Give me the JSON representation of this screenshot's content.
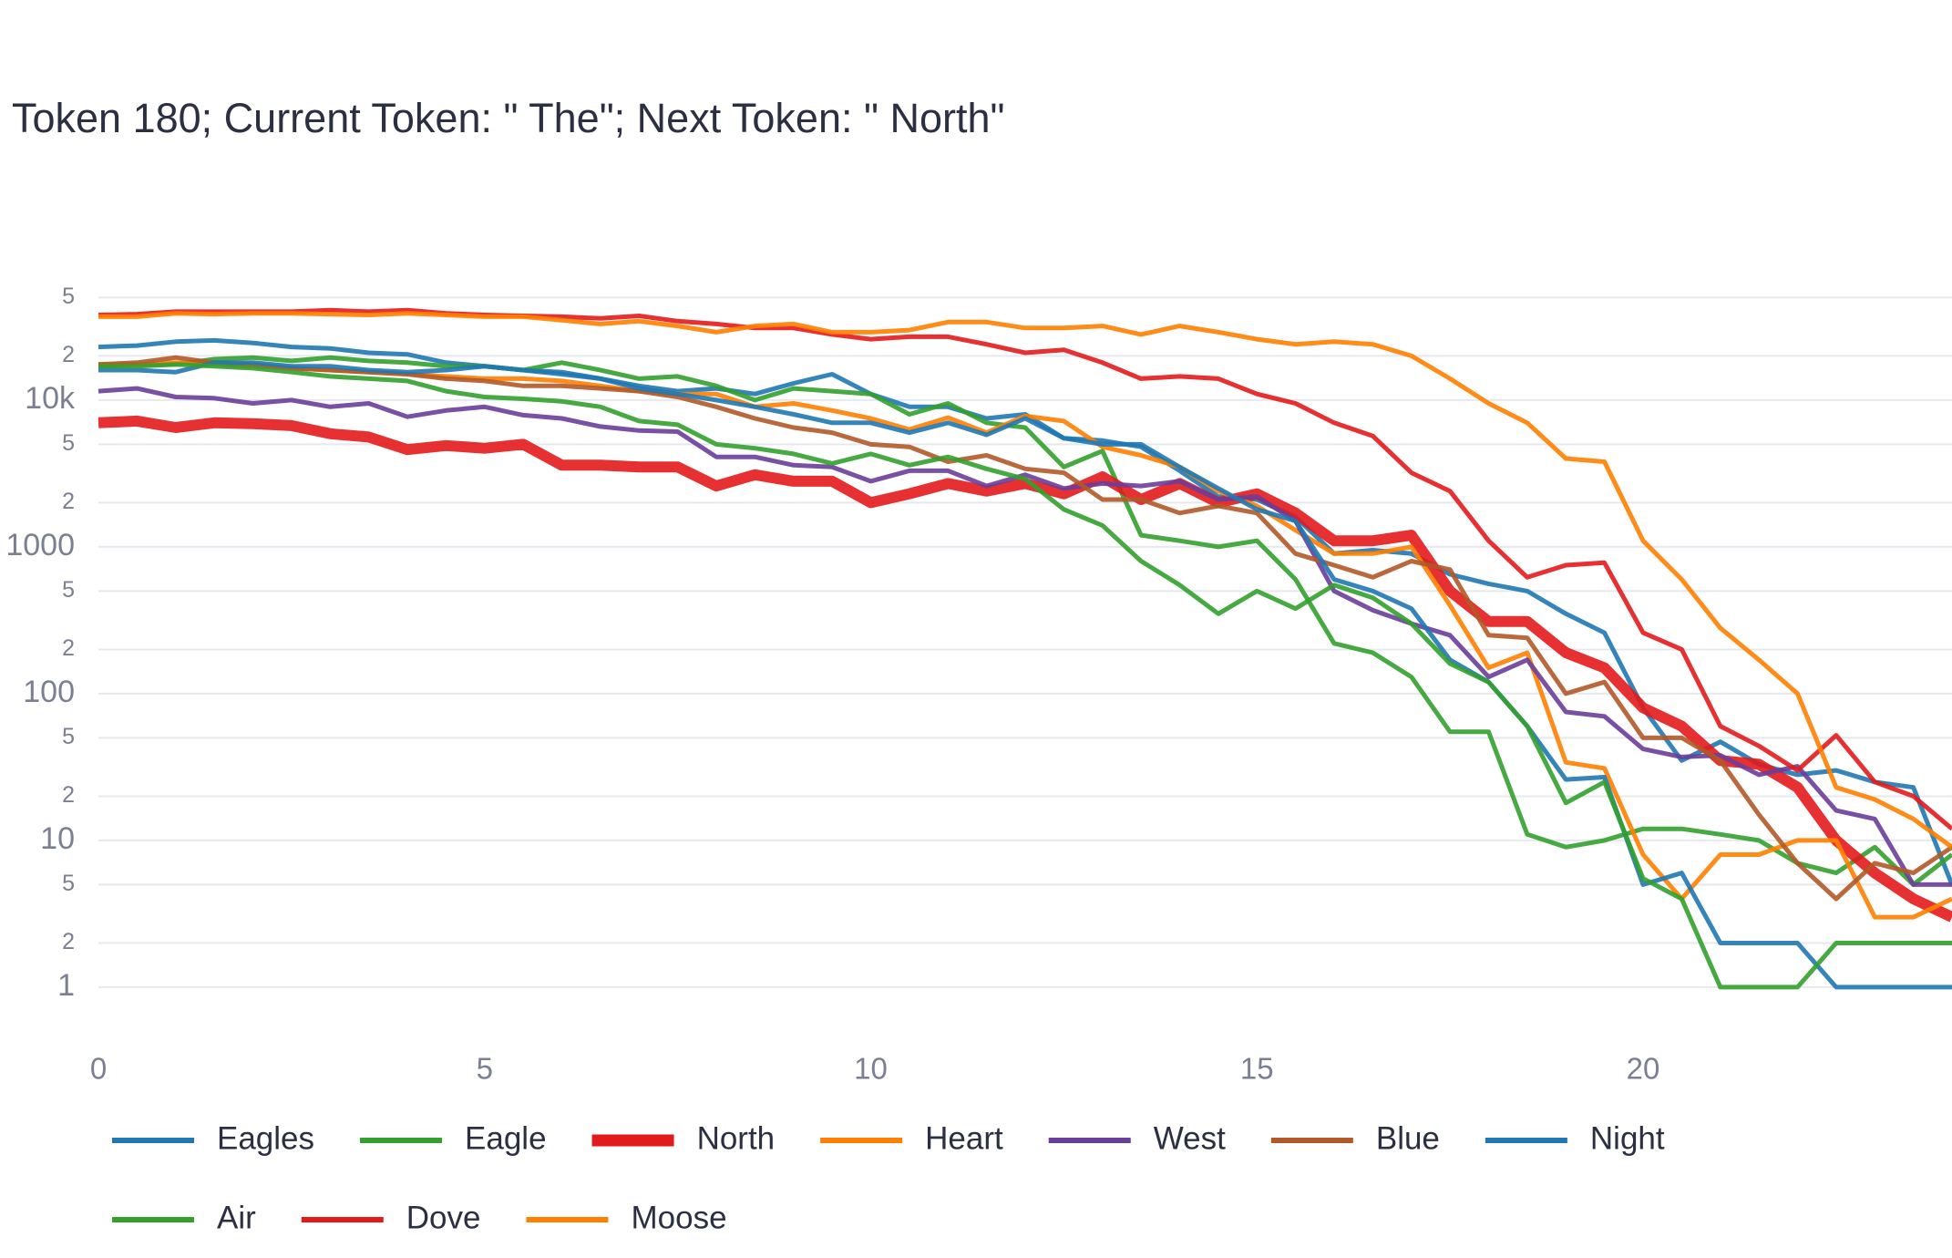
{
  "chart_data": {
    "type": "line",
    "title": "Token 180; Current Token: \" The\"; Next Token: \" North\"",
    "log_y": true,
    "grid": true,
    "x": [
      0,
      0.5,
      1,
      1.5,
      2,
      2.5,
      3,
      3.5,
      4,
      4.5,
      5,
      5.5,
      6,
      6.5,
      7,
      7.5,
      8,
      8.5,
      9,
      9.5,
      10,
      10.5,
      11,
      11.5,
      12,
      12.5,
      13,
      13.5,
      14,
      14.5,
      15,
      15.5,
      16,
      16.5,
      17,
      17.5,
      18,
      18.5,
      19,
      19.5,
      20,
      20.5,
      21,
      21.5,
      22,
      22.5,
      23,
      23.5,
      24
    ],
    "xlim": [
      0,
      24
    ],
    "xticks": [
      0,
      5,
      10,
      15,
      20
    ],
    "ylim": [
      0.4,
      65000
    ],
    "yticks": [
      1,
      {
        "value": 2,
        "label": "2"
      },
      5,
      10,
      {
        "value": 20,
        "label": "2"
      },
      {
        "value": 50,
        "label": "5"
      },
      100,
      {
        "value": 200,
        "label": "2"
      },
      {
        "value": 500,
        "label": "5"
      },
      1000,
      {
        "value": 2000,
        "label": "2"
      },
      {
        "value": 5000,
        "label": "5"
      },
      {
        "value": 10000,
        "label": "10k"
      },
      {
        "value": 20000,
        "label": "2"
      },
      {
        "value": 50000,
        "label": "5"
      }
    ],
    "series": [
      {
        "name": "Eagles",
        "color": "#1f78b4",
        "width": 5,
        "values": [
          23000,
          23500,
          25000,
          25500,
          24500,
          23000,
          22500,
          21000,
          20500,
          18000,
          17000,
          16000,
          15500,
          14000,
          12500,
          11500,
          12000,
          11000,
          13000,
          15000,
          11000,
          9000,
          9000,
          7500,
          8000,
          5500,
          5300,
          4800,
          3300,
          2200,
          2100,
          1600,
          900,
          950,
          900,
          650,
          560,
          500,
          350,
          260,
          80,
          35,
          47,
          33,
          28,
          30,
          25,
          23,
          5
        ]
      },
      {
        "name": "Eagle",
        "color": "#33a02c",
        "width": 5,
        "values": [
          17000,
          17500,
          17500,
          19000,
          19500,
          18500,
          19500,
          18500,
          18000,
          17000,
          17000,
          16000,
          18000,
          16000,
          14000,
          14500,
          12500,
          10000,
          12000,
          11500,
          11000,
          8000,
          9500,
          7000,
          6500,
          3500,
          4500,
          1200,
          1100,
          1000,
          1100,
          600,
          220,
          190,
          130,
          55,
          55,
          11,
          9,
          10,
          12,
          12,
          11,
          10,
          7,
          6,
          9,
          5,
          8
        ]
      },
      {
        "name": "North",
        "color": "#e31a1c",
        "width": 12,
        "values": [
          7000,
          7200,
          6500,
          7000,
          6900,
          6700,
          5900,
          5600,
          4600,
          4900,
          4700,
          5000,
          3600,
          3600,
          3500,
          3500,
          2600,
          3100,
          2800,
          2800,
          2000,
          2300,
          2700,
          2400,
          2700,
          2300,
          3000,
          2100,
          2700,
          2000,
          2300,
          1700,
          1100,
          1100,
          1200,
          500,
          310,
          310,
          190,
          150,
          80,
          60,
          35,
          33,
          23,
          10,
          6,
          4,
          3
        ]
      },
      {
        "name": "Heart",
        "color": "#ff7f00",
        "width": 5,
        "values": [
          17500,
          17500,
          18000,
          17500,
          17000,
          16500,
          16000,
          15500,
          15000,
          14500,
          14000,
          14000,
          13500,
          12500,
          11500,
          11000,
          11000,
          9000,
          9500,
          8500,
          7500,
          6300,
          7600,
          6000,
          7800,
          7200,
          4800,
          4200,
          3500,
          2400,
          1900,
          1300,
          900,
          900,
          1000,
          400,
          150,
          190,
          34,
          31,
          8,
          4,
          8,
          8,
          10,
          10,
          3,
          3,
          4
        ]
      },
      {
        "name": "West",
        "color": "#6a3d9a",
        "width": 5,
        "values": [
          11500,
          12000,
          10500,
          10300,
          9500,
          10000,
          9000,
          9500,
          7700,
          8500,
          9000,
          7900,
          7500,
          6600,
          6200,
          6100,
          4100,
          4100,
          3600,
          3500,
          2800,
          3300,
          3300,
          2600,
          3100,
          2500,
          2700,
          2600,
          2800,
          2100,
          2200,
          1500,
          500,
          370,
          300,
          250,
          130,
          170,
          75,
          70,
          42,
          37,
          38,
          28,
          32,
          16,
          14,
          5,
          5
        ]
      },
      {
        "name": "Blue",
        "color": "#b15928",
        "width": 5,
        "values": [
          17500,
          18000,
          19500,
          18000,
          17500,
          16500,
          16000,
          15500,
          15000,
          14000,
          13500,
          12500,
          12500,
          12000,
          11500,
          10500,
          9000,
          7500,
          6500,
          6000,
          5000,
          4800,
          3800,
          4200,
          3400,
          3200,
          2100,
          2100,
          1700,
          1900,
          1700,
          900,
          750,
          620,
          800,
          700,
          250,
          240,
          100,
          120,
          50,
          50,
          35,
          15,
          7,
          4,
          7,
          6,
          9
        ]
      },
      {
        "name": "Night",
        "color": "#1f78b4",
        "width": 5,
        "values": [
          16000,
          16000,
          15500,
          18000,
          18000,
          17000,
          17000,
          16000,
          15500,
          16000,
          17000,
          16000,
          15000,
          14000,
          12000,
          11000,
          10000,
          9000,
          8000,
          7000,
          7000,
          6000,
          7000,
          5800,
          7500,
          5500,
          5000,
          5000,
          3500,
          2500,
          1800,
          1500,
          600,
          500,
          380,
          170,
          120,
          60,
          26,
          27,
          5,
          6,
          2,
          2,
          2,
          1,
          1,
          1,
          1
        ]
      },
      {
        "name": "Air",
        "color": "#33a02c",
        "width": 5,
        "values": [
          17000,
          17000,
          17500,
          17000,
          16500,
          15500,
          14500,
          14000,
          13500,
          11500,
          10500,
          10200,
          9800,
          9000,
          7200,
          6800,
          5000,
          4700,
          4300,
          3700,
          4300,
          3600,
          4100,
          3400,
          2900,
          1800,
          1400,
          800,
          550,
          350,
          500,
          380,
          550,
          450,
          300,
          160,
          120,
          60,
          18,
          25,
          5.5,
          4,
          1,
          1,
          1,
          2,
          2,
          2,
          2
        ]
      },
      {
        "name": "Dove",
        "color": "#e31a1c",
        "width": 5,
        "values": [
          38000,
          38500,
          40000,
          40000,
          40000,
          40000,
          41000,
          40000,
          41000,
          39000,
          38000,
          37500,
          37000,
          36000,
          37500,
          34500,
          33000,
          31000,
          31000,
          28000,
          26000,
          27000,
          27000,
          24000,
          21000,
          22000,
          18000,
          14000,
          14500,
          14000,
          11000,
          9500,
          7000,
          5700,
          3200,
          2400,
          1100,
          620,
          750,
          780,
          260,
          200,
          60,
          44,
          30,
          52,
          25,
          20,
          12
        ]
      },
      {
        "name": "Moose",
        "color": "#ff7f00",
        "width": 5,
        "values": [
          37000,
          37000,
          39000,
          38500,
          39000,
          39000,
          38500,
          38000,
          39000,
          38000,
          37000,
          37000,
          35000,
          33000,
          34500,
          32000,
          29000,
          32000,
          33000,
          29000,
          29000,
          30000,
          34000,
          34000,
          31000,
          31000,
          32000,
          28000,
          32000,
          29000,
          26000,
          24000,
          25000,
          24000,
          20000,
          14000,
          9500,
          7000,
          4000,
          3800,
          1100,
          600,
          280,
          170,
          100,
          23,
          19,
          14,
          9
        ]
      }
    ]
  }
}
